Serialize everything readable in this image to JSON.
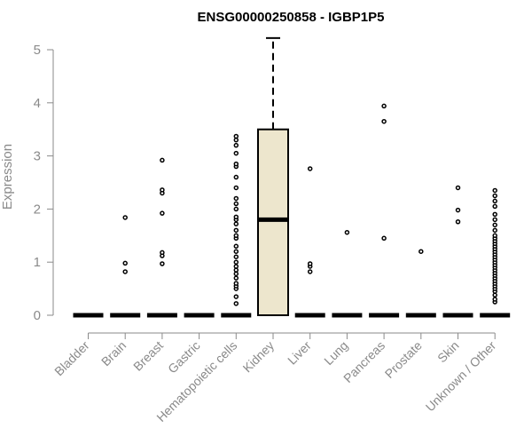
{
  "chart_data": {
    "type": "box",
    "title": "ENSG00000250858 - IGBP1P5",
    "xlabel": "",
    "ylabel": "Expression",
    "ylim": [
      0,
      5.25
    ],
    "yticks": [
      0,
      1,
      2,
      3,
      4,
      5
    ],
    "categories": [
      "Bladder",
      "Brain",
      "Breast",
      "Gastric",
      "Hematopoietic cells",
      "Kidney",
      "Liver",
      "Lung",
      "Pancreas",
      "Prostate",
      "Skin",
      "Unknown / Other"
    ],
    "boxes": [
      {
        "category": "Bladder",
        "min": 0,
        "q1": 0,
        "median": 0,
        "q3": 0,
        "max": 0,
        "outliers": []
      },
      {
        "category": "Brain",
        "min": 0,
        "q1": 0,
        "median": 0,
        "q3": 0,
        "max": 0,
        "outliers": [
          0.82,
          0.98,
          1.84
        ]
      },
      {
        "category": "Breast",
        "min": 0,
        "q1": 0,
        "median": 0,
        "q3": 0,
        "max": 0,
        "outliers": [
          0.97,
          1.12,
          1.18,
          1.92,
          2.3,
          2.36,
          2.92
        ]
      },
      {
        "category": "Gastric",
        "min": 0,
        "q1": 0,
        "median": 0,
        "q3": 0,
        "max": 0,
        "outliers": []
      },
      {
        "category": "Hematopoietic cells",
        "min": 0,
        "q1": 0,
        "median": 0,
        "q3": 0,
        "max": 0,
        "outliers": [
          0.22,
          0.35,
          0.5,
          0.55,
          0.6,
          0.7,
          0.78,
          0.85,
          0.92,
          1.0,
          1.1,
          1.2,
          1.3,
          1.45,
          1.5,
          1.6,
          1.72,
          1.8,
          1.85,
          2.0,
          2.1,
          2.2,
          2.4,
          2.6,
          2.8,
          2.85,
          3.05,
          3.2,
          3.3,
          3.37
        ]
      },
      {
        "category": "Kidney",
        "min": 0,
        "q1": 0,
        "median": 1.8,
        "q3": 3.5,
        "max": 5.22,
        "outliers": []
      },
      {
        "category": "Liver",
        "min": 0,
        "q1": 0,
        "median": 0,
        "q3": 0,
        "max": 0,
        "outliers": [
          0.82,
          0.92,
          0.97,
          2.76
        ]
      },
      {
        "category": "Lung",
        "min": 0,
        "q1": 0,
        "median": 0,
        "q3": 0,
        "max": 0,
        "outliers": [
          1.56
        ]
      },
      {
        "category": "Pancreas",
        "min": 0,
        "q1": 0,
        "median": 0,
        "q3": 0,
        "max": 0,
        "outliers": [
          1.45,
          3.65,
          3.94
        ]
      },
      {
        "category": "Prostate",
        "min": 0,
        "q1": 0,
        "median": 0,
        "q3": 0,
        "max": 0,
        "outliers": [
          1.2
        ]
      },
      {
        "category": "Skin",
        "min": 0,
        "q1": 0,
        "median": 0,
        "q3": 0,
        "max": 0,
        "outliers": [
          1.76,
          1.98,
          2.4
        ]
      },
      {
        "category": "Unknown / Other",
        "min": 0,
        "q1": 0,
        "median": 0,
        "q3": 0,
        "max": 0,
        "outliers": [
          0.25,
          0.3,
          0.38,
          0.45,
          0.5,
          0.55,
          0.6,
          0.65,
          0.7,
          0.75,
          0.8,
          0.85,
          0.9,
          0.95,
          1.0,
          1.05,
          1.1,
          1.15,
          1.2,
          1.25,
          1.3,
          1.35,
          1.4,
          1.45,
          1.5,
          1.6,
          1.7,
          1.8,
          1.9,
          2.05,
          2.15,
          2.25,
          2.35
        ]
      }
    ],
    "box_fill": "#ede6cd",
    "axis_color": "#8a8a8a",
    "grid": false,
    "legend": "none"
  }
}
